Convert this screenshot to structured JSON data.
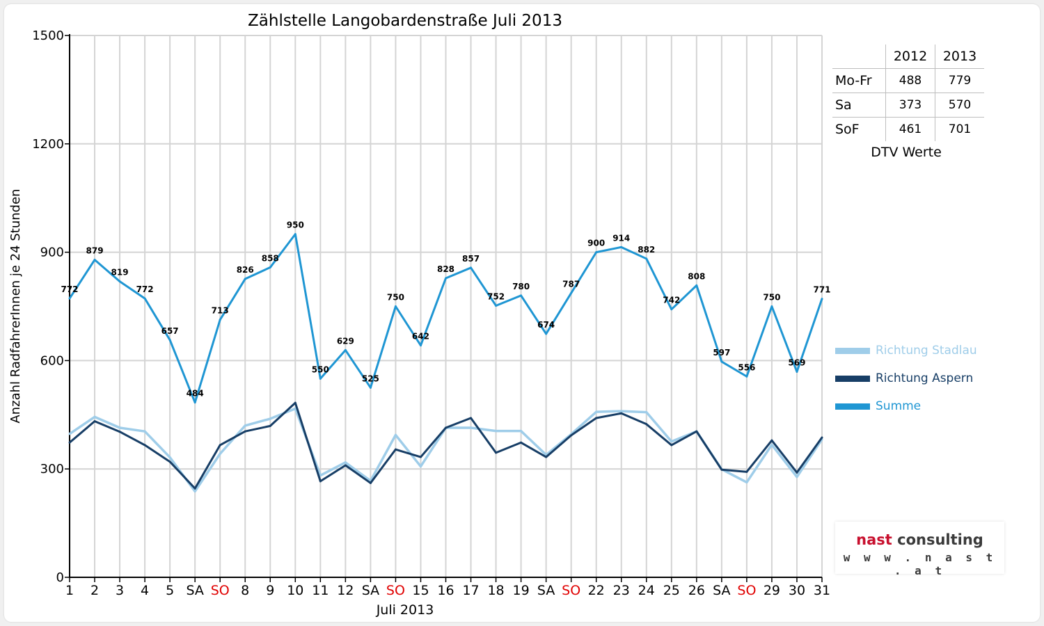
{
  "chart_data": {
    "type": "line",
    "title": "Zählstelle Langobardenstraße Juli 2013",
    "xlabel": "Juli 2013",
    "ylabel": "Anzahl RadfahrerInnen je 24 Stunden",
    "ylim": [
      0,
      1500
    ],
    "yticks": [
      0,
      300,
      600,
      900,
      1200,
      1500
    ],
    "grid": true,
    "legend_position": "right",
    "categories": [
      "1",
      "2",
      "3",
      "4",
      "5",
      "SA",
      "SO",
      "8",
      "9",
      "10",
      "11",
      "12",
      "SA",
      "SO",
      "15",
      "16",
      "17",
      "18",
      "19",
      "SA",
      "SO",
      "22",
      "23",
      "24",
      "25",
      "26",
      "SA",
      "SO",
      "29",
      "30",
      "31"
    ],
    "weekend_tick_color": {
      "SA": "#000000",
      "SO": "#e00000"
    },
    "series": [
      {
        "name": "Richtung Stadlau",
        "color": "#9fcde9",
        "values": [
          397,
          444,
          414,
          404,
          332,
          238,
          342,
          420,
          439,
          467,
          282,
          318,
          267,
          394,
          307,
          414,
          414,
          405,
          405,
          339,
          396,
          458,
          460,
          457,
          376,
          404,
          299,
          263,
          367,
          278,
          382
        ]
      },
      {
        "name": "Richtung Aspern",
        "color": "#173e66",
        "values": [
          373,
          432,
          403,
          366,
          320,
          246,
          366,
          404,
          419,
          483,
          266,
          310,
          261,
          354,
          333,
          414,
          441,
          345,
          373,
          333,
          393,
          441,
          454,
          424,
          366,
          404,
          298,
          292,
          379,
          290,
          387
        ]
      },
      {
        "name": "Summe",
        "color": "#1f96d3",
        "values": [
          772,
          879,
          819,
          772,
          657,
          484,
          713,
          826,
          858,
          950,
          550,
          629,
          525,
          750,
          642,
          828,
          857,
          752,
          780,
          674,
          787,
          900,
          914,
          882,
          742,
          808,
          597,
          556,
          750,
          569,
          771
        ],
        "data_labels": true
      }
    ]
  },
  "dtv_table": {
    "columns": [
      "",
      "2012",
      "2013"
    ],
    "rows": [
      {
        "label": "Mo-Fr",
        "v2012": "488",
        "v2013": "779"
      },
      {
        "label": "Sa",
        "v2012": "373",
        "v2013": "570"
      },
      {
        "label": "SoF",
        "v2012": "461",
        "v2013": "701"
      }
    ],
    "caption": "DTV Werte"
  },
  "logo": {
    "brand_accent": "nast",
    "brand_rest": " consulting",
    "url": "w w w . n a s t . a t",
    "accent_color": "#c8102e"
  }
}
